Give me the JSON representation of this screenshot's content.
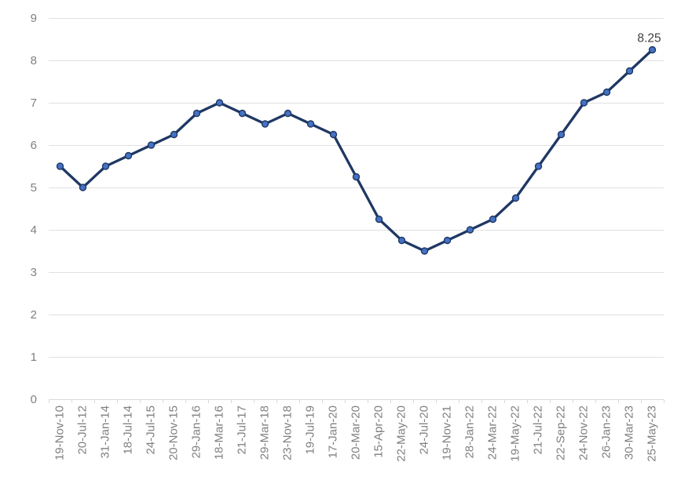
{
  "chart_data": {
    "type": "line",
    "title": "",
    "xlabel": "",
    "ylabel": "",
    "categories": [
      "19-Nov-10",
      "20-Jul-12",
      "31-Jan-14",
      "18-Jul-14",
      "24-Jul-15",
      "20-Nov-15",
      "29-Jan-16",
      "18-Mar-16",
      "21-Jul-17",
      "29-Mar-18",
      "23-Nov-18",
      "19-Jul-19",
      "17-Jan-20",
      "20-Mar-20",
      "15-Apr-20",
      "22-May-20",
      "24-Jul-20",
      "19-Nov-21",
      "28-Jan-22",
      "24-Mar-22",
      "19-May-22",
      "21-Jul-22",
      "22-Sep-22",
      "24-Nov-22",
      "26-Jan-23",
      "30-Mar-23",
      "25-May-23"
    ],
    "values": [
      5.5,
      5.0,
      5.5,
      5.75,
      6.0,
      6.25,
      6.75,
      7.0,
      6.75,
      6.5,
      6.75,
      6.5,
      6.25,
      5.25,
      4.25,
      3.75,
      3.5,
      3.75,
      4.0,
      4.25,
      4.75,
      5.5,
      6.25,
      7.0,
      7.25,
      7.75,
      8.25
    ],
    "ylim": [
      0,
      9
    ],
    "ytick_labels": [
      "0",
      "1",
      "2",
      "3",
      "4",
      "5",
      "6",
      "7",
      "8",
      "9"
    ],
    "grid": true,
    "legend": false,
    "last_point_label": "8.25",
    "colors": {
      "line": "#1F3864",
      "marker_fill": "#4472C4",
      "marker_edge": "#1F3864",
      "gridline": "#E0E0E0",
      "axis_line": "#D9D9D9",
      "tick_label": "#808080",
      "annotation": "#404040",
      "background": "#FFFFFF"
    }
  }
}
